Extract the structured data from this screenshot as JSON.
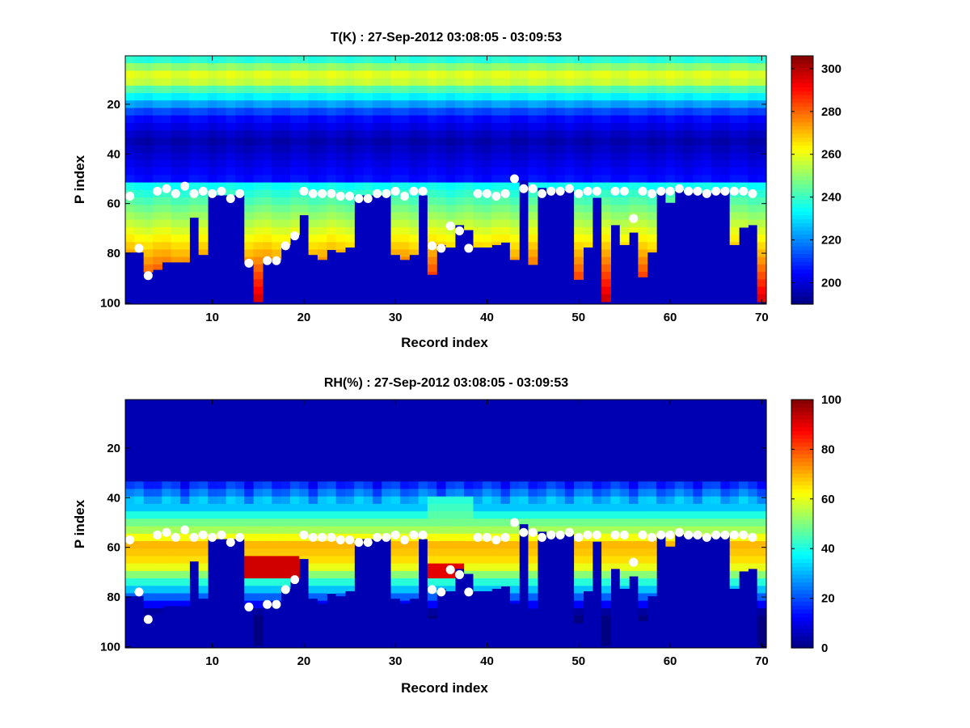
{
  "window": {
    "background": "#ffffff"
  },
  "chart_data": [
    {
      "type": "heatmap",
      "title": "T(K) : 27-Sep-2012 03:08:05 - 03:09:53",
      "xlabel": "Record index",
      "ylabel": "P index",
      "xlim": [
        0.5,
        70.5
      ],
      "ylim": [
        0.5,
        100.5
      ],
      "y_reversed": true,
      "xticks": [
        10,
        20,
        30,
        40,
        50,
        60,
        70
      ],
      "yticks": [
        20,
        40,
        60,
        80,
        100
      ],
      "colorbar": {
        "range": [
          190,
          306
        ],
        "ticks": [
          200,
          220,
          240,
          260,
          280,
          300
        ],
        "colormap": "jet"
      },
      "quantity": "temperature",
      "surface_p_index": [
        80,
        80,
        88,
        87,
        84,
        84,
        84,
        66,
        81,
        57,
        57,
        57,
        57,
        84,
        100,
        83,
        83,
        77,
        73,
        65,
        81,
        83,
        79,
        80,
        78,
        57,
        57,
        57,
        57,
        81,
        83,
        81,
        57,
        89,
        77,
        78,
        69,
        71,
        78,
        78,
        77,
        76,
        83,
        51,
        85,
        54,
        55,
        55,
        55,
        91,
        78,
        58,
        100,
        69,
        77,
        72,
        90,
        80,
        56,
        60,
        55,
        56,
        56,
        56,
        56,
        55,
        77,
        70,
        69,
        100
      ],
      "dots_p_index": [
        57,
        78,
        89,
        55,
        54,
        56,
        53,
        56,
        55,
        56,
        55,
        58,
        56,
        84,
        null,
        83,
        83,
        77,
        73,
        55,
        56,
        56,
        56,
        57,
        57,
        58,
        58,
        56,
        56,
        55,
        57,
        55,
        55,
        77,
        78,
        69,
        71,
        78,
        56,
        56,
        57,
        56,
        50,
        54,
        54,
        56,
        55,
        55,
        54,
        56,
        55,
        55,
        null,
        55,
        55,
        66,
        55,
        56,
        55,
        55,
        54,
        55,
        55,
        56,
        55,
        55,
        55,
        55,
        56,
        null
      ],
      "dots_color": "#ffffff",
      "background_value": 197
    },
    {
      "type": "heatmap",
      "title": "RH(%) : 27-Sep-2012 03:08:05 - 03:09:53",
      "xlabel": "Record index",
      "ylabel": "P index",
      "xlim": [
        0.5,
        70.5
      ],
      "ylim": [
        0.5,
        100.5
      ],
      "y_reversed": true,
      "xticks": [
        10,
        20,
        30,
        40,
        50,
        60,
        70
      ],
      "yticks": [
        20,
        40,
        60,
        80,
        100
      ],
      "colorbar": {
        "range": [
          0,
          100
        ],
        "ticks": [
          0,
          20,
          40,
          60,
          80,
          100
        ],
        "colormap": "jet"
      },
      "quantity": "relative_humidity",
      "surface_p_index": [
        80,
        80,
        88,
        87,
        84,
        84,
        84,
        66,
        81,
        57,
        57,
        57,
        57,
        84,
        100,
        83,
        83,
        77,
        73,
        65,
        81,
        83,
        79,
        80,
        78,
        57,
        57,
        57,
        57,
        81,
        83,
        81,
        57,
        89,
        77,
        78,
        69,
        71,
        78,
        78,
        77,
        76,
        83,
        51,
        85,
        54,
        55,
        55,
        55,
        91,
        78,
        58,
        100,
        69,
        77,
        72,
        90,
        80,
        56,
        60,
        55,
        56,
        56,
        56,
        56,
        55,
        77,
        70,
        69,
        100
      ],
      "dots_p_index": [
        57,
        78,
        89,
        55,
        54,
        56,
        53,
        56,
        55,
        56,
        55,
        58,
        56,
        84,
        null,
        83,
        83,
        77,
        73,
        55,
        56,
        56,
        56,
        57,
        57,
        58,
        58,
        56,
        56,
        55,
        57,
        55,
        55,
        77,
        78,
        69,
        71,
        78,
        56,
        56,
        57,
        56,
        50,
        54,
        54,
        56,
        55,
        55,
        54,
        56,
        55,
        55,
        null,
        55,
        55,
        66,
        55,
        56,
        55,
        55,
        54,
        55,
        55,
        56,
        55,
        55,
        55,
        55,
        56,
        null
      ],
      "dots_color": "#ffffff",
      "background_value": 5
    }
  ]
}
